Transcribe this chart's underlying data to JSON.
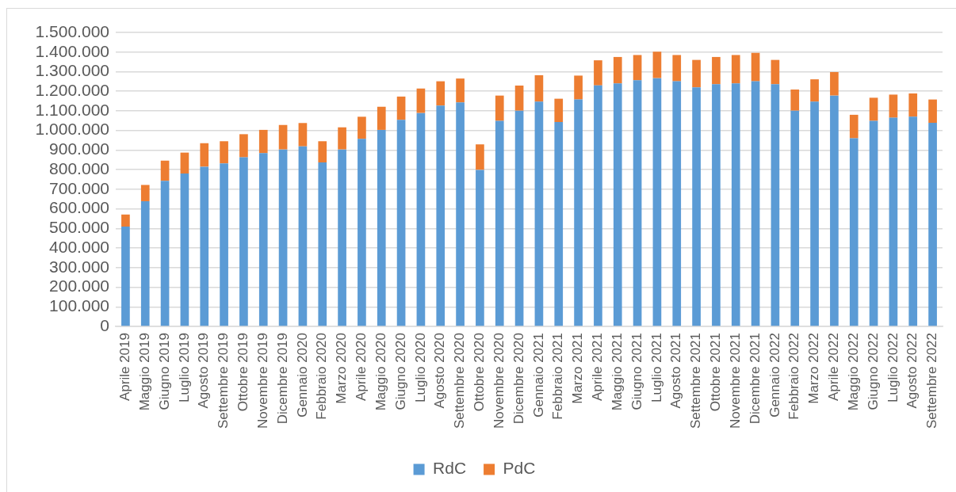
{
  "chart_data": {
    "type": "bar",
    "stacked": true,
    "grid": "y",
    "legend": "bottom",
    "categories": [
      "Aprile 2019",
      "Maggio 2019",
      "Giugno 2019",
      "Luglio 2019",
      "Agosto 2019",
      "Settembre 2019",
      "Ottobre 2019",
      "Novembre 2019",
      "Dicembre 2019",
      "Gennaio 2020",
      "Febbraio 2020",
      "Marzo 2020",
      "Aprile 2020",
      "Maggio 2020",
      "Giugno 2020",
      "Luglio 2020",
      "Agosto 2020",
      "Settembre 2020",
      "Ottobre 2020",
      "Novembre 2020",
      "Dicembre 2020",
      "Gennaio 2021",
      "Febbraio 2021",
      "Marzo 2021",
      "Aprile 2021",
      "Maggio 2021",
      "Giugno 2021",
      "Luglio 2021",
      "Agosto 2021",
      "Settembre 2021",
      "Ottobre 2021",
      "Novembre 2021",
      "Dicembre 2021",
      "Gennaio 2022",
      "Febbraio 2022",
      "Marzo 2022",
      "Aprile 2022",
      "Maggio 2022",
      "Giugno 2022",
      "Luglio 2022",
      "Agosto 2022",
      "Settembre 2022"
    ],
    "series": [
      {
        "name": "RdC",
        "color": "#5b9bd5",
        "values": [
          509000,
          639000,
          743000,
          780000,
          815000,
          832000,
          863000,
          884000,
          903000,
          919000,
          837000,
          903000,
          957000,
          1003000,
          1054000,
          1089000,
          1127000,
          1143000,
          799000,
          1049000,
          1101000,
          1147000,
          1043000,
          1158000,
          1230000,
          1240000,
          1256000,
          1267000,
          1251000,
          1220000,
          1236000,
          1240000,
          1251000,
          1236000,
          1101000,
          1147000,
          1178000,
          960000,
          1049000,
          1065000,
          1070000,
          1039000
        ]
      },
      {
        "name": "PdC",
        "color": "#ed7d31",
        "values": [
          62000,
          83000,
          103000,
          107000,
          120000,
          113000,
          118000,
          119000,
          125000,
          119000,
          108000,
          113000,
          113000,
          118000,
          119000,
          125000,
          124000,
          122000,
          130000,
          129000,
          128000,
          135000,
          119000,
          122000,
          128000,
          135000,
          129000,
          135000,
          134000,
          140000,
          139000,
          145000,
          145000,
          124000,
          108000,
          114000,
          120000,
          120000,
          118000,
          118000,
          119000,
          119000
        ]
      }
    ],
    "ylim": [
      0,
      1500000
    ],
    "yticks": [
      {
        "value": 0,
        "label": "0"
      },
      {
        "value": 100000,
        "label": "100.000"
      },
      {
        "value": 200000,
        "label": "200.000"
      },
      {
        "value": 300000,
        "label": "300.000"
      },
      {
        "value": 400000,
        "label": "400.000"
      },
      {
        "value": 500000,
        "label": "500.000"
      },
      {
        "value": 600000,
        "label": "600.000"
      },
      {
        "value": 700000,
        "label": "700.000"
      },
      {
        "value": 800000,
        "label": "800.000"
      },
      {
        "value": 900000,
        "label": "900.000"
      },
      {
        "value": 1000000,
        "label": "1.000.000"
      },
      {
        "value": 1100000,
        "label": "1.100.000"
      },
      {
        "value": 1200000,
        "label": "1.200.000"
      },
      {
        "value": 1300000,
        "label": "1.300.000"
      },
      {
        "value": 1400000,
        "label": "1.400.000"
      },
      {
        "value": 1500000,
        "label": "1.500.000"
      }
    ]
  }
}
